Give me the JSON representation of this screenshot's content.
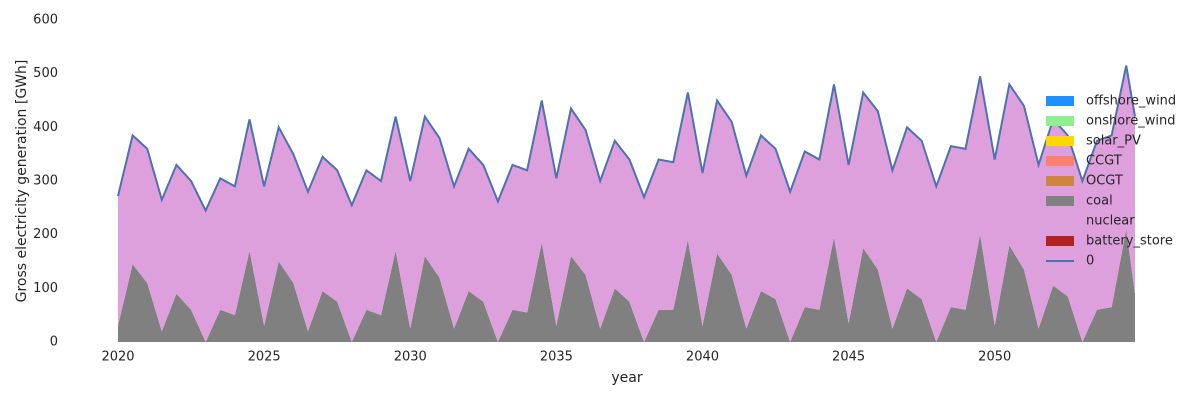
{
  "chart_data": {
    "type": "stacked_area",
    "xlabel": "year",
    "ylabel": "Gross electricity generation [GWh]",
    "x": [
      2020,
      2020.5,
      2021,
      2021.5,
      2022,
      2022.5,
      2023,
      2023.5,
      2024,
      2024.5,
      2025,
      2025.5,
      2026,
      2026.5,
      2027,
      2027.5,
      2028,
      2028.5,
      2029,
      2029.5,
      2030,
      2030.5,
      2031,
      2031.5,
      2032,
      2032.5,
      2033,
      2033.5,
      2034,
      2034.5,
      2035,
      2035.5,
      2036,
      2036.5,
      2037,
      2037.5,
      2038,
      2038.5,
      2039,
      2039.5,
      2040,
      2040.5,
      2041,
      2041.5,
      2042,
      2042.5,
      2043,
      2043.5,
      2044,
      2044.5,
      2045,
      2045.5,
      2046,
      2046.5,
      2047,
      2047.5,
      2048,
      2048.5,
      2049,
      2049.5,
      2050,
      2050.5,
      2051,
      2051.5,
      2052,
      2052.5,
      2053,
      2053.5,
      2054,
      2054.5,
      2054.8
    ],
    "series": [
      {
        "name": "offshore_wind",
        "color": "#1e90ff",
        "values": [
          0,
          0,
          0,
          0,
          0,
          0,
          0,
          0,
          0,
          0,
          0,
          0,
          0,
          0,
          0,
          0,
          0,
          0,
          0,
          0,
          0,
          0,
          0,
          0,
          0,
          0,
          0,
          0,
          0,
          0,
          0,
          0,
          0,
          0,
          0,
          0,
          0,
          0,
          0,
          0,
          0,
          0,
          0,
          0,
          0,
          0,
          0,
          0,
          0,
          0,
          0,
          0,
          0,
          0,
          0,
          0,
          0,
          0,
          0,
          0,
          0,
          0,
          0,
          0,
          0,
          0,
          0,
          0,
          0,
          0,
          0
        ]
      },
      {
        "name": "onshore_wind",
        "color": "#90ee90",
        "values": [
          0,
          0,
          0,
          0,
          0,
          0,
          0,
          0,
          0,
          0,
          0,
          0,
          0,
          0,
          0,
          0,
          0,
          0,
          0,
          0,
          0,
          0,
          0,
          0,
          0,
          0,
          0,
          0,
          0,
          0,
          0,
          0,
          0,
          0,
          0,
          0,
          0,
          0,
          0,
          0,
          0,
          0,
          0,
          0,
          0,
          0,
          0,
          0,
          0,
          0,
          0,
          0,
          0,
          0,
          0,
          0,
          0,
          0,
          0,
          0,
          0,
          0,
          0,
          0,
          0,
          0,
          0,
          0,
          0,
          0,
          0
        ]
      },
      {
        "name": "solar_PV",
        "color": "#ffd700",
        "values": [
          0,
          0,
          0,
          0,
          0,
          0,
          0,
          0,
          0,
          0,
          0,
          0,
          0,
          0,
          0,
          0,
          0,
          0,
          0,
          0,
          0,
          0,
          0,
          0,
          0,
          0,
          0,
          0,
          0,
          0,
          0,
          0,
          0,
          0,
          0,
          0,
          0,
          0,
          0,
          0,
          0,
          0,
          0,
          0,
          0,
          0,
          0,
          0,
          0,
          0,
          0,
          0,
          0,
          0,
          0,
          0,
          0,
          0,
          0,
          0,
          0,
          0,
          0,
          0,
          0,
          0,
          0,
          0,
          0,
          0,
          0
        ]
      },
      {
        "name": "CCGT",
        "color": "#fa8072",
        "values": [
          0,
          0,
          0,
          0,
          0,
          0,
          0,
          0,
          0,
          0,
          0,
          0,
          0,
          0,
          0,
          0,
          0,
          0,
          0,
          0,
          0,
          0,
          0,
          0,
          0,
          0,
          0,
          0,
          0,
          0,
          0,
          0,
          0,
          0,
          0,
          0,
          0,
          0,
          0,
          0,
          0,
          0,
          0,
          0,
          0,
          0,
          0,
          0,
          0,
          0,
          0,
          0,
          0,
          0,
          0,
          0,
          0,
          0,
          0,
          0,
          0,
          0,
          0,
          0,
          0,
          0,
          0,
          0,
          0,
          0,
          0
        ]
      },
      {
        "name": "OCGT",
        "color": "#cd853f",
        "values": [
          0,
          0,
          0,
          0,
          0,
          0,
          0,
          0,
          0,
          0,
          0,
          0,
          0,
          0,
          0,
          0,
          0,
          0,
          0,
          0,
          0,
          0,
          0,
          0,
          0,
          0,
          0,
          0,
          0,
          0,
          0,
          0,
          0,
          0,
          0,
          0,
          0,
          0,
          0,
          0,
          0,
          0,
          0,
          0,
          0,
          0,
          0,
          0,
          0,
          0,
          0,
          0,
          0,
          0,
          0,
          0,
          0,
          0,
          0,
          0,
          0,
          0,
          0,
          0,
          0,
          0,
          0,
          0,
          0,
          0,
          0
        ]
      },
      {
        "name": "coal",
        "color": "#808080",
        "values": [
          30,
          145,
          110,
          20,
          90,
          60,
          0,
          60,
          50,
          170,
          30,
          150,
          110,
          20,
          95,
          75,
          0,
          60,
          50,
          170,
          25,
          160,
          120,
          25,
          95,
          75,
          0,
          60,
          55,
          185,
          30,
          160,
          125,
          25,
          100,
          75,
          0,
          60,
          60,
          190,
          30,
          165,
          125,
          25,
          95,
          80,
          0,
          65,
          60,
          195,
          35,
          175,
          135,
          25,
          100,
          80,
          0,
          65,
          60,
          200,
          30,
          180,
          135,
          25,
          105,
          85,
          0,
          60,
          65,
          210,
          90
        ]
      },
      {
        "name": "nuclear",
        "color": "#dda0dd",
        "values": [
          242,
          240,
          250,
          245,
          240,
          240,
          245,
          245,
          240,
          245,
          260,
          250,
          240,
          260,
          250,
          245,
          255,
          260,
          250,
          250,
          275,
          260,
          260,
          265,
          265,
          255,
          262,
          270,
          265,
          265,
          275,
          275,
          270,
          275,
          275,
          265,
          270,
          280,
          275,
          275,
          285,
          285,
          285,
          285,
          290,
          280,
          280,
          290,
          280,
          285,
          295,
          290,
          295,
          295,
          300,
          295,
          290,
          300,
          300,
          295,
          310,
          300,
          305,
          305,
          310,
          300,
          300,
          315,
          320,
          305,
          330
        ]
      },
      {
        "name": "battery_store",
        "color": "#b22222",
        "values": [
          0,
          0,
          0,
          0,
          0,
          0,
          0,
          0,
          0,
          0,
          0,
          0,
          0,
          0,
          0,
          0,
          0,
          0,
          0,
          0,
          0,
          0,
          0,
          0,
          0,
          0,
          0,
          0,
          0,
          0,
          0,
          0,
          0,
          0,
          0,
          0,
          0,
          0,
          0,
          0,
          0,
          0,
          0,
          0,
          0,
          0,
          0,
          0,
          0,
          0,
          0,
          0,
          0,
          0,
          0,
          0,
          0,
          0,
          0,
          0,
          0,
          0,
          0,
          0,
          0,
          0,
          0,
          0,
          0,
          0,
          0
        ]
      }
    ],
    "line": {
      "name": "0",
      "color": "#4c72b0",
      "values": [
        272,
        385,
        360,
        265,
        330,
        300,
        245,
        305,
        290,
        415,
        290,
        400,
        350,
        280,
        345,
        320,
        255,
        320,
        300,
        420,
        300,
        420,
        380,
        290,
        360,
        330,
        262,
        330,
        320,
        450,
        305,
        435,
        395,
        300,
        375,
        340,
        270,
        340,
        335,
        465,
        315,
        450,
        410,
        310,
        385,
        360,
        280,
        355,
        340,
        480,
        330,
        465,
        430,
        320,
        400,
        375,
        290,
        365,
        360,
        495,
        340,
        480,
        440,
        330,
        415,
        385,
        300,
        375,
        385,
        515,
        420
      ]
    },
    "xlim": [
      2020,
      2054.8
    ],
    "ylim": [
      0,
      600
    ],
    "xticks": [
      2020,
      2025,
      2030,
      2035,
      2040,
      2045,
      2050
    ],
    "yticks": [
      0,
      100,
      200,
      300,
      400,
      500,
      600
    ],
    "grid": false,
    "legend": "center right"
  }
}
